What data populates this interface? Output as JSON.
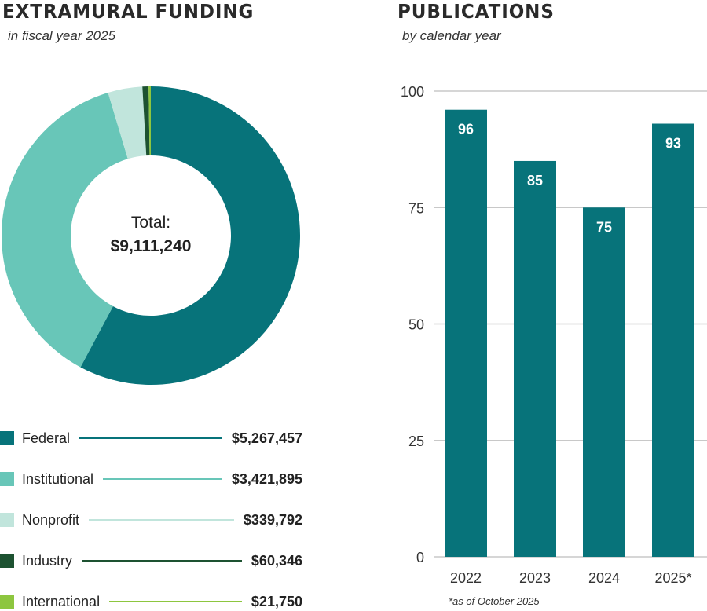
{
  "chart_data": [
    {
      "type": "pie",
      "title": "EXTRAMURAL FUNDING",
      "subtitle": "in fiscal year 2025",
      "center_label": "Total:",
      "center_value": "$9,111,240",
      "categories": [
        "Federal",
        "Institutional",
        "Nonprofit",
        "Industry",
        "International"
      ],
      "values": [
        5267457,
        3421895,
        339792,
        60346,
        21750
      ],
      "value_labels": [
        "$5,267,457",
        "$3,421,895",
        "$339,792",
        "$60,346",
        "$21,750"
      ],
      "colors": [
        "#07737a",
        "#68c6b8",
        "#c1e5dc",
        "#1d5231",
        "#8dc63f"
      ],
      "legend": "bottom"
    },
    {
      "type": "bar",
      "title": "PUBLICATIONS",
      "subtitle": "by calendar year",
      "categories": [
        "2022",
        "2023",
        "2024",
        "2025*"
      ],
      "values": [
        96,
        85,
        75,
        93
      ],
      "ylim": [
        0,
        100
      ],
      "yticks": [
        "0",
        "25",
        "50",
        "75",
        "100"
      ],
      "grid": true,
      "color": "#07737a",
      "footnote": "*as of October 2025"
    }
  ]
}
